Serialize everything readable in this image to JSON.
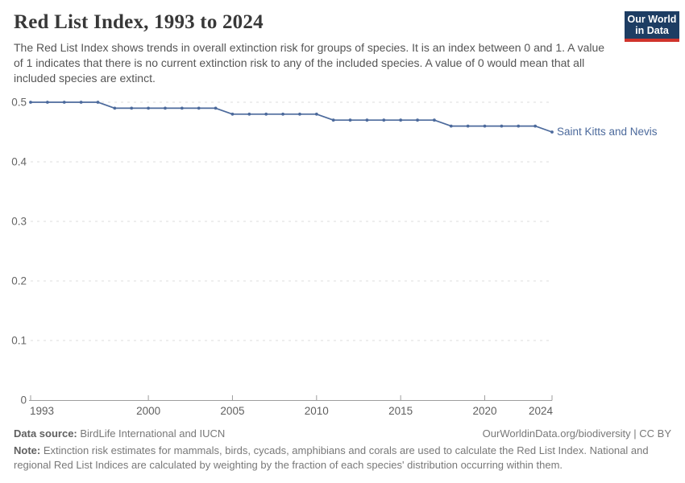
{
  "header": {
    "title": "Red List Index, 1993 to 2024",
    "subtitle": "The Red List Index shows trends in overall extinction risk for groups of species. It is an index between 0 and 1. A value of 1 indicates that there is no current extinction risk to any of the included species. A value of 0 would mean that all included species are extinct."
  },
  "logo": {
    "line1": "Our World",
    "line2": "in Data",
    "bg_color": "#1d3d63",
    "stripe_color": "#d0342c"
  },
  "chart_data": {
    "type": "line",
    "title": "Red List Index, 1993 to 2024",
    "xlabel": "",
    "ylabel": "",
    "ylim": [
      0,
      0.5
    ],
    "yticks": [
      0,
      0.1,
      0.2,
      0.3,
      0.4,
      0.5
    ],
    "ytick_labels": [
      "0",
      "0.1",
      "0.2",
      "0.3",
      "0.4",
      "0.5"
    ],
    "xticks": [
      1993,
      2000,
      2005,
      2010,
      2015,
      2020,
      2024
    ],
    "grid": "horizontal dashed",
    "legend_position": "end-of-line label",
    "line_color": "#4c6a9c",
    "grid_color": "#dcdcdc",
    "axis_color": "#9e9e9e",
    "tick_label_color": "#5f5f5f",
    "series": [
      {
        "name": "Saint Kitts and Nevis",
        "x": [
          1993,
          1994,
          1995,
          1996,
          1997,
          1998,
          1999,
          2000,
          2001,
          2002,
          2003,
          2004,
          2005,
          2006,
          2007,
          2008,
          2009,
          2010,
          2011,
          2012,
          2013,
          2014,
          2015,
          2016,
          2017,
          2018,
          2019,
          2020,
          2021,
          2022,
          2023,
          2024
        ],
        "values": [
          0.5,
          0.5,
          0.5,
          0.5,
          0.5,
          0.49,
          0.49,
          0.49,
          0.49,
          0.49,
          0.49,
          0.49,
          0.48,
          0.48,
          0.48,
          0.48,
          0.48,
          0.48,
          0.47,
          0.47,
          0.47,
          0.47,
          0.47,
          0.47,
          0.47,
          0.46,
          0.46,
          0.46,
          0.46,
          0.46,
          0.46,
          0.45
        ]
      }
    ]
  },
  "footer": {
    "source_label": "Data source:",
    "source_text": " BirdLife International and IUCN",
    "link_text": "OurWorldinData.org/biodiversity | CC BY",
    "note_label": "Note:",
    "note_text": " Extinction risk estimates for mammals, birds, cycads, amphibians and corals are used to calculate the Red List Index. National and regional Red List Indices are calculated by weighting by the fraction of each species' distribution occurring within them."
  }
}
